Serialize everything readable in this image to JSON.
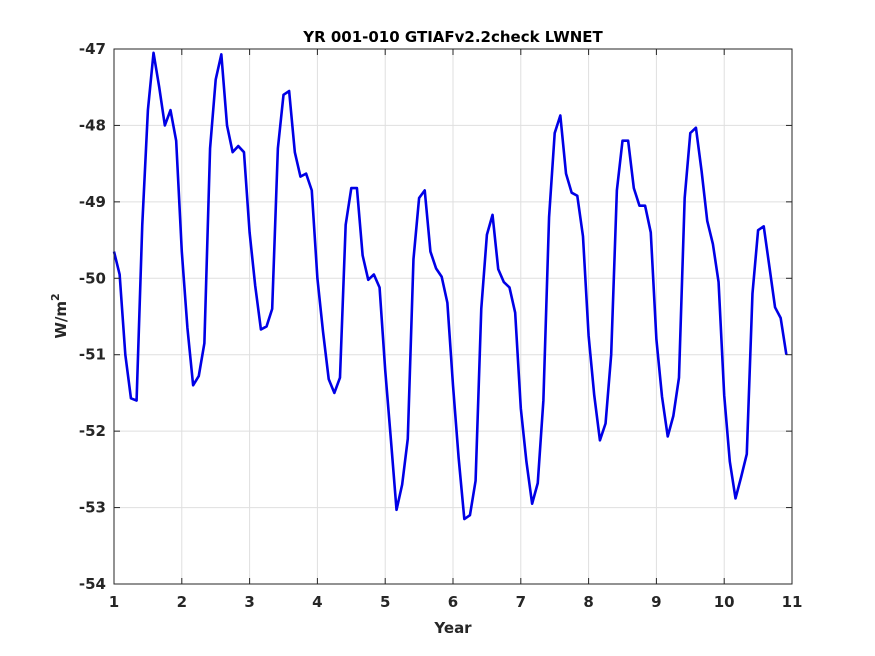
{
  "chart_data": {
    "type": "line",
    "title": "YR 001-010 GTIAFv2.2check LWNET",
    "xlabel": "Year",
    "ylabel": "W/m",
    "ylabel_superscript": "2",
    "xlim": [
      1,
      11
    ],
    "ylim": [
      -54,
      -47
    ],
    "xticks": [
      1,
      2,
      3,
      4,
      5,
      6,
      7,
      8,
      9,
      10,
      11
    ],
    "yticks": [
      -54,
      -53,
      -52,
      -51,
      -50,
      -49,
      -48,
      -47
    ],
    "grid": true,
    "line_color": "#0000e6",
    "series": [
      {
        "x": [
          1.0,
          1.083,
          1.167,
          1.25,
          1.333,
          1.417,
          1.5,
          1.583,
          1.667,
          1.75,
          1.833,
          1.917,
          2.0,
          2.083,
          2.167,
          2.25,
          2.333,
          2.417,
          2.5,
          2.583,
          2.667,
          2.75,
          2.833,
          2.917,
          3.0,
          3.083,
          3.167,
          3.25,
          3.333,
          3.417,
          3.5,
          3.583,
          3.667,
          3.75,
          3.833,
          3.917,
          4.0,
          4.083,
          4.167,
          4.25,
          4.333,
          4.417,
          4.5,
          4.583,
          4.667,
          4.75,
          4.833,
          4.917,
          5.0,
          5.083,
          5.167,
          5.25,
          5.333,
          5.417,
          5.5,
          5.583,
          5.667,
          5.75,
          5.833,
          5.917,
          6.0,
          6.083,
          6.167,
          6.25,
          6.333,
          6.417,
          6.5,
          6.583,
          6.667,
          6.75,
          6.833,
          6.917,
          7.0,
          7.083,
          7.167,
          7.25,
          7.333,
          7.417,
          7.5,
          7.583,
          7.667,
          7.75,
          7.833,
          7.917,
          8.0,
          8.083,
          8.167,
          8.25,
          8.333,
          8.417,
          8.5,
          8.583,
          8.667,
          8.75,
          8.833,
          8.917,
          9.0,
          9.083,
          9.167,
          9.25,
          9.333,
          9.417,
          9.5,
          9.583,
          9.667,
          9.75,
          9.833,
          9.917,
          10.0,
          10.083,
          10.167,
          10.25,
          10.333,
          10.417,
          10.5,
          10.583,
          10.667,
          10.75,
          10.833,
          10.917
        ],
        "y": [
          -49.65,
          -49.95,
          -51.0,
          -51.57,
          -51.6,
          -49.3,
          -47.8,
          -47.05,
          -47.5,
          -48.0,
          -47.8,
          -48.2,
          -49.65,
          -50.65,
          -51.4,
          -51.28,
          -50.85,
          -48.3,
          -47.4,
          -47.07,
          -48.0,
          -48.35,
          -48.27,
          -48.35,
          -49.4,
          -50.1,
          -50.67,
          -50.63,
          -50.4,
          -48.3,
          -47.6,
          -47.55,
          -48.35,
          -48.67,
          -48.63,
          -48.85,
          -50.0,
          -50.7,
          -51.32,
          -51.5,
          -51.3,
          -49.3,
          -48.82,
          -48.82,
          -49.7,
          -50.02,
          -49.95,
          -50.12,
          -51.2,
          -52.1,
          -53.03,
          -52.7,
          -52.1,
          -49.75,
          -48.95,
          -48.85,
          -49.65,
          -49.87,
          -49.98,
          -50.32,
          -51.4,
          -52.35,
          -53.15,
          -53.1,
          -52.65,
          -50.4,
          -49.43,
          -49.17,
          -49.88,
          -50.05,
          -50.12,
          -50.45,
          -51.7,
          -52.4,
          -52.95,
          -52.68,
          -51.6,
          -49.2,
          -48.1,
          -47.87,
          -48.63,
          -48.88,
          -48.92,
          -49.45,
          -50.75,
          -51.53,
          -52.12,
          -51.9,
          -51.0,
          -48.85,
          -48.2,
          -48.2,
          -48.82,
          -49.05,
          -49.05,
          -49.4,
          -50.8,
          -51.55,
          -52.07,
          -51.8,
          -51.3,
          -48.95,
          -48.1,
          -48.03,
          -48.6,
          -49.25,
          -49.55,
          -50.05,
          -51.53,
          -52.4,
          -52.88,
          -52.6,
          -52.3,
          -50.2,
          -49.37,
          -49.32,
          -49.85,
          -50.38,
          -50.52,
          -51.0
        ]
      }
    ]
  }
}
